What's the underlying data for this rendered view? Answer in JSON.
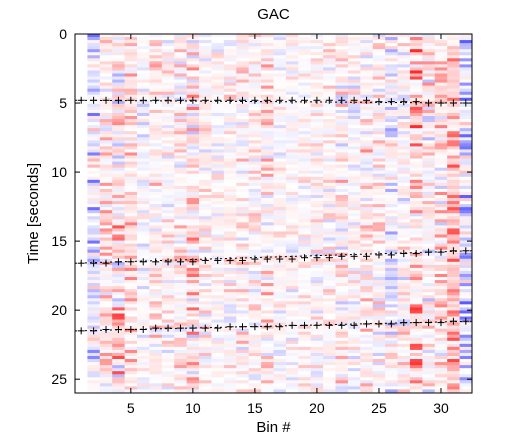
{
  "chart_data": {
    "type": "heatmap",
    "title": "GAC",
    "xlabel": "Bin #",
    "ylabel": "Time [seconds]",
    "xlim": [
      0.5,
      32.5
    ],
    "ylim": [
      26,
      0
    ],
    "x_ticks": [
      5,
      10,
      15,
      20,
      25,
      30
    ],
    "y_ticks": [
      0,
      5,
      10,
      15,
      20,
      25
    ],
    "grid": false,
    "colormap": {
      "negative": "#0000ff",
      "zero": "#ffffff",
      "positive": "#ff0000"
    },
    "marker_series": [
      {
        "marker": "+",
        "color": "#000000",
        "x": [
          1,
          2,
          3,
          4,
          5,
          6,
          7,
          8,
          9,
          10,
          11,
          12,
          13,
          14,
          15,
          16,
          17,
          18,
          19,
          20,
          21,
          22,
          23,
          24,
          25,
          26,
          27,
          28,
          29,
          30,
          31,
          32
        ],
        "y": [
          4.8,
          4.8,
          4.8,
          4.8,
          4.8,
          4.8,
          4.8,
          4.8,
          4.8,
          4.8,
          4.8,
          4.8,
          4.8,
          4.8,
          4.8,
          4.8,
          4.8,
          4.8,
          4.8,
          4.8,
          4.8,
          4.8,
          4.8,
          4.8,
          4.9,
          4.9,
          4.9,
          4.9,
          5.0,
          5.0,
          5.0,
          5.0
        ]
      },
      {
        "marker": "+",
        "color": "#000000",
        "x": [
          1,
          2,
          3,
          4,
          5,
          6,
          7,
          8,
          9,
          10,
          11,
          12,
          13,
          14,
          15,
          16,
          17,
          18,
          19,
          20,
          21,
          22,
          23,
          24,
          25,
          26,
          27,
          28,
          29,
          30,
          31,
          32
        ],
        "y": [
          16.6,
          16.6,
          16.6,
          16.5,
          16.5,
          16.5,
          16.5,
          16.5,
          16.5,
          16.5,
          16.4,
          16.4,
          16.4,
          16.4,
          16.3,
          16.3,
          16.3,
          16.3,
          16.2,
          16.2,
          16.2,
          16.1,
          16.1,
          16.1,
          16.0,
          16.0,
          15.9,
          15.9,
          15.8,
          15.8,
          15.7,
          15.7
        ]
      },
      {
        "marker": "+",
        "color": "#000000",
        "x": [
          1,
          2,
          3,
          4,
          5,
          6,
          7,
          8,
          9,
          10,
          11,
          12,
          13,
          14,
          15,
          16,
          17,
          18,
          19,
          20,
          21,
          22,
          23,
          24,
          25,
          26,
          27,
          28,
          29,
          30,
          31,
          32
        ],
        "y": [
          21.5,
          21.5,
          21.4,
          21.4,
          21.4,
          21.4,
          21.3,
          21.3,
          21.3,
          21.3,
          21.3,
          21.3,
          21.2,
          21.2,
          21.2,
          21.2,
          21.2,
          21.1,
          21.1,
          21.1,
          21.1,
          21.1,
          21.1,
          21.0,
          21.0,
          21.0,
          20.9,
          20.9,
          20.9,
          20.9,
          20.8,
          20.8
        ]
      }
    ]
  }
}
